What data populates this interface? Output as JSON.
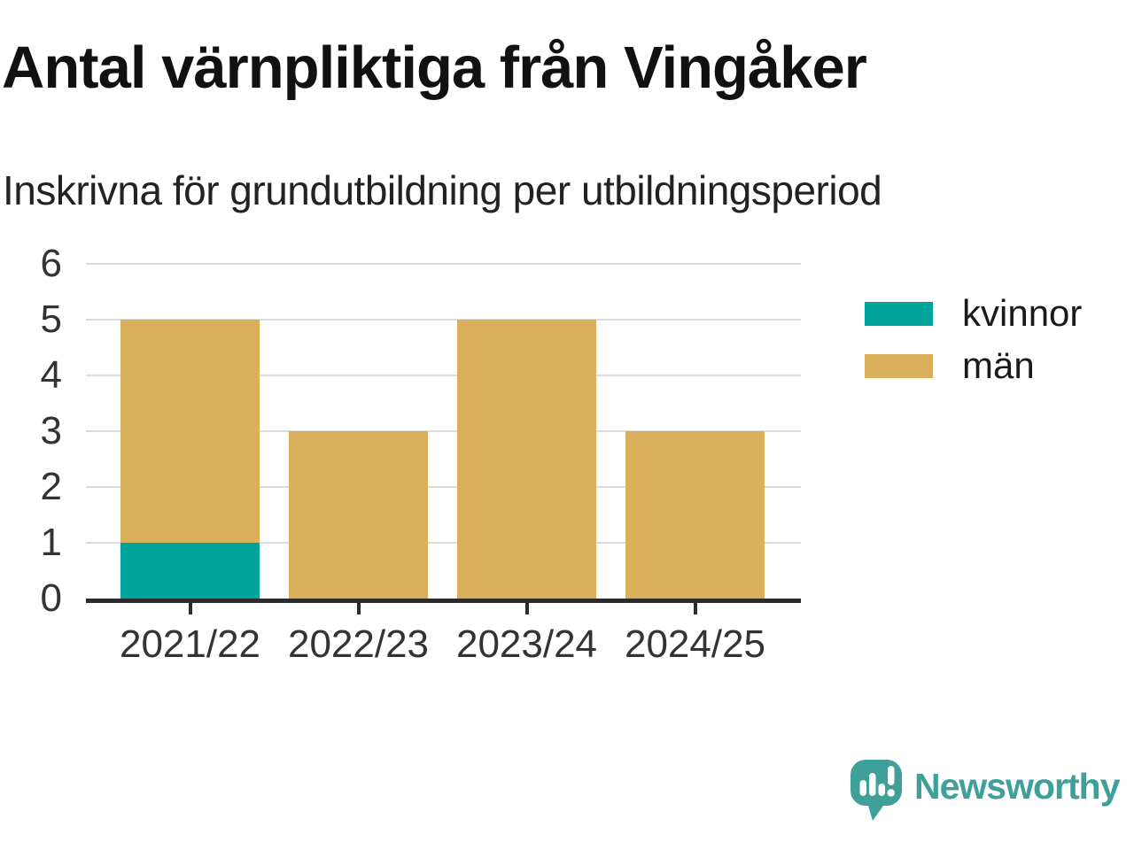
{
  "header": {
    "title": "Antal värnpliktiga från Vingåker",
    "subtitle": "Inskrivna för grundutbildning per utbildningsperiod"
  },
  "chart_data": {
    "type": "bar",
    "stacked": true,
    "categories": [
      "2021/22",
      "2022/23",
      "2023/24",
      "2024/25"
    ],
    "series": [
      {
        "name": "kvinnor",
        "color": "#00A49A",
        "values": [
          1,
          0,
          0,
          0
        ]
      },
      {
        "name": "män",
        "color": "#DBB05C",
        "values": [
          4,
          3,
          5,
          3
        ]
      }
    ],
    "totals": [
      5,
      3,
      5,
      3
    ],
    "ylim": [
      0,
      6
    ],
    "yticks": [
      0,
      1,
      2,
      3,
      4,
      5,
      6
    ],
    "grid": "horizontal",
    "legend_position": "right",
    "colors": {
      "gridline": "#dcdcdc",
      "axis": "#2b2b2b",
      "tick_label": "#333333"
    }
  },
  "branding": {
    "logo_text": "Newsworthy",
    "logo_color": "#3FA09A",
    "logo_icon": "speech-bubble-bar-chart-icon"
  }
}
